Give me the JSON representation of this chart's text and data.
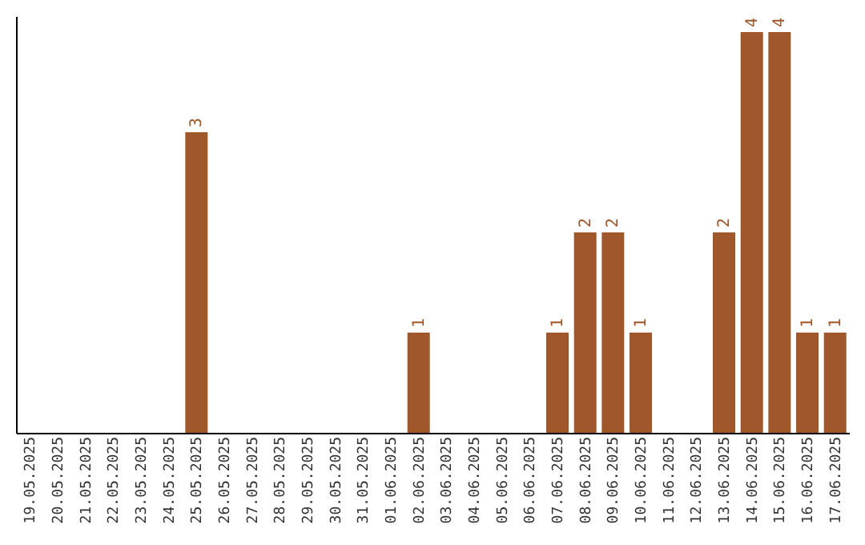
{
  "chart_data": {
    "type": "bar",
    "categories": [
      "19.05.2025",
      "20.05.2025",
      "21.05.2025",
      "22.05.2025",
      "23.05.2025",
      "24.05.2025",
      "25.05.2025",
      "26.05.2025",
      "27.05.2025",
      "28.05.2025",
      "29.05.2025",
      "30.05.2025",
      "31.05.2025",
      "01.06.2025",
      "02.06.2025",
      "03.06.2025",
      "04.06.2025",
      "05.06.2025",
      "06.06.2025",
      "07.06.2025",
      "08.06.2025",
      "09.06.2025",
      "10.06.2025",
      "11.06.2025",
      "12.06.2025",
      "13.06.2025",
      "14.06.2025",
      "15.06.2025",
      "16.06.2025",
      "17.06.2025"
    ],
    "values": [
      null,
      null,
      null,
      null,
      null,
      null,
      3,
      null,
      null,
      null,
      null,
      null,
      null,
      null,
      1,
      null,
      null,
      null,
      null,
      1,
      2,
      2,
      1,
      null,
      null,
      2,
      4,
      4,
      1,
      1
    ],
    "color": "#a0572a",
    "ylim": [
      0,
      4.16
    ],
    "data_labels": true,
    "tick_labels": "x",
    "grid": false
  }
}
